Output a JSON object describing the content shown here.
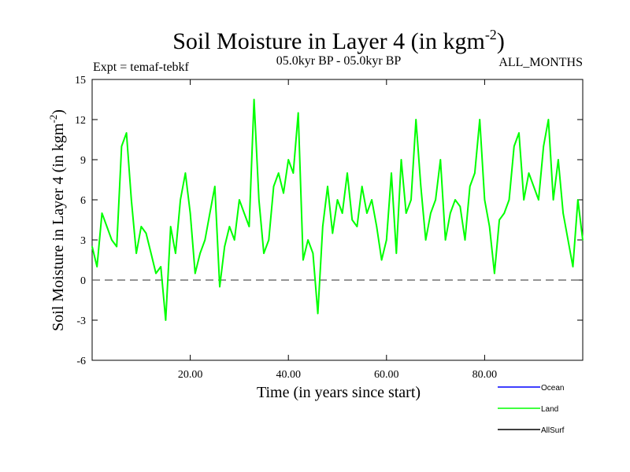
{
  "chart_data": {
    "type": "line",
    "title": "Soil Moisture in Layer 4 (in kgm",
    "title_sup": "-2",
    "title_end": ")",
    "subtitle_left": "Expt = temaf-tebkf",
    "subtitle_center": "05.0kyr BP - 05.0kyr BP",
    "subtitle_right": "ALL_MONTHS",
    "xlabel": "Time (in years since start)",
    "ylabel": "Soil Moisture in Layer 4 (in kgm",
    "ylabel_sup": "-2",
    "ylabel_end": ")",
    "xlim": [
      0,
      100
    ],
    "ylim": [
      -6,
      15
    ],
    "yticks": [
      -6,
      -3,
      0,
      3,
      6,
      9,
      12,
      15
    ],
    "ytick_labels": [
      "-6",
      "-3",
      "0",
      "3",
      "6",
      "9",
      "12",
      "15"
    ],
    "xticks": [
      20,
      40,
      60,
      80
    ],
    "xtick_labels": [
      "20.00",
      "40.00",
      "60.00",
      "80.00"
    ],
    "reference_line": 0,
    "legend": [
      {
        "name": "Ocean",
        "color": "#0000ff"
      },
      {
        "name": "Land",
        "color": "#00ff00"
      },
      {
        "name": "AllSurf",
        "color": "#000000"
      }
    ],
    "series": [
      {
        "name": "Land",
        "color": "#00ff00",
        "x": [
          0,
          1,
          2,
          3,
          4,
          5,
          6,
          7,
          8,
          9,
          10,
          11,
          12,
          13,
          14,
          15,
          16,
          17,
          18,
          19,
          20,
          21,
          22,
          23,
          24,
          25,
          26,
          27,
          28,
          29,
          30,
          31,
          32,
          33,
          34,
          35,
          36,
          37,
          38,
          39,
          40,
          41,
          42,
          43,
          44,
          45,
          46,
          47,
          48,
          49,
          50,
          51,
          52,
          53,
          54,
          55,
          56,
          57,
          58,
          59,
          60,
          61,
          62,
          63,
          64,
          65,
          66,
          67,
          68,
          69,
          70,
          71,
          72,
          73,
          74,
          75,
          76,
          77,
          78,
          79,
          80,
          81,
          82,
          83,
          84,
          85,
          86,
          87,
          88,
          89,
          90,
          91,
          92,
          93,
          94,
          95,
          96,
          97,
          98,
          99,
          100
        ],
        "values": [
          2.5,
          1.0,
          5.0,
          4.0,
          3.0,
          2.5,
          10.0,
          11.0,
          6.0,
          2.0,
          4.0,
          3.5,
          2.0,
          0.5,
          1.0,
          -3.0,
          4.0,
          2.0,
          6.0,
          8.0,
          5.0,
          0.5,
          2.0,
          3.0,
          5.0,
          7.0,
          -0.5,
          2.5,
          4.0,
          3.0,
          6.0,
          5.0,
          4.0,
          13.5,
          6.0,
          2.0,
          3.0,
          7.0,
          8.0,
          6.5,
          9.0,
          8.0,
          12.5,
          1.5,
          3.0,
          2.0,
          -2.5,
          4.0,
          7.0,
          3.5,
          6.0,
          5.0,
          8.0,
          4.5,
          4.0,
          7.0,
          5.0,
          6.0,
          4.0,
          1.5,
          3.0,
          8.0,
          2.0,
          9.0,
          5.0,
          6.0,
          12.0,
          7.0,
          3.0,
          5.0,
          6.0,
          9.0,
          3.0,
          5.0,
          6.0,
          5.5,
          3.0,
          7.0,
          8.0,
          12.0,
          6.0,
          4.0,
          0.5,
          4.5,
          5.0,
          6.0,
          10.0,
          11.0,
          6.0,
          8.0,
          7.0,
          6.0,
          10.0,
          12.0,
          6.0,
          9.0,
          5.0,
          3.0,
          1.0,
          6.0,
          3.0
        ]
      }
    ]
  }
}
